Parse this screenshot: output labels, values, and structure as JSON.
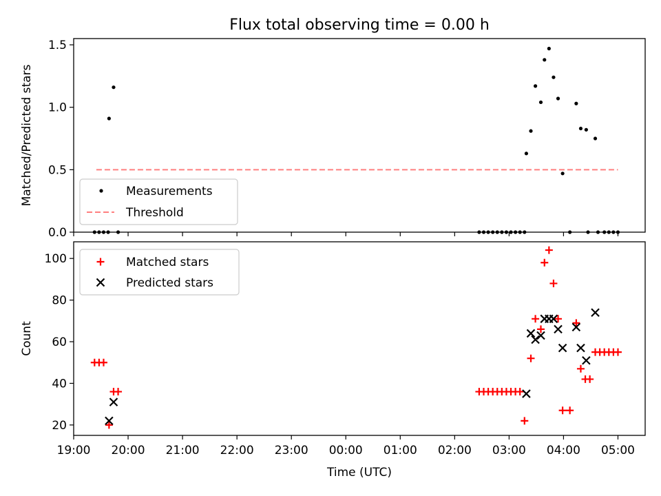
{
  "chart_data": [
    {
      "type": "scatter",
      "title": "Flux total observing time = 0.00 h",
      "xlabel": "",
      "ylabel": "Matched/Predicted stars",
      "xlim": [
        "19:00",
        "05:30"
      ],
      "ylim": [
        0,
        1.55
      ],
      "yticks": [
        "0.0",
        "0.5",
        "1.0",
        "1.5"
      ],
      "grid": false,
      "legend_position": "lower-left",
      "series": [
        {
          "name": "Measurements",
          "marker": "dot",
          "color": "#000000",
          "points": [
            [
              "19:23",
              0
            ],
            [
              "19:28",
              0
            ],
            [
              "19:33",
              0
            ],
            [
              "19:38",
              0
            ],
            [
              "19:39",
              0.91
            ],
            [
              "19:44",
              1.16
            ],
            [
              "19:49",
              0
            ],
            [
              "02:27",
              0
            ],
            [
              "02:32",
              0
            ],
            [
              "02:37",
              0
            ],
            [
              "02:42",
              0
            ],
            [
              "02:47",
              0
            ],
            [
              "02:52",
              0
            ],
            [
              "02:57",
              0
            ],
            [
              "03:02",
              0
            ],
            [
              "03:07",
              0
            ],
            [
              "03:12",
              0
            ],
            [
              "03:17",
              0
            ],
            [
              "03:19",
              0.63
            ],
            [
              "03:24",
              0.81
            ],
            [
              "03:29",
              1.17
            ],
            [
              "03:35",
              1.04
            ],
            [
              "03:39",
              1.38
            ],
            [
              "03:44",
              1.47
            ],
            [
              "03:49",
              1.24
            ],
            [
              "03:54",
              1.07
            ],
            [
              "03:59",
              0.47
            ],
            [
              "04:07",
              0
            ],
            [
              "04:14",
              1.03
            ],
            [
              "04:19",
              0.83
            ],
            [
              "04:25",
              0.82
            ],
            [
              "04:27",
              0
            ],
            [
              "04:35",
              0.75
            ],
            [
              "04:38",
              0
            ],
            [
              "04:45",
              0
            ],
            [
              "04:50",
              0
            ],
            [
              "04:55",
              0
            ],
            [
              "05:00",
              0
            ]
          ]
        },
        {
          "name": "Threshold",
          "marker": "dashed-line",
          "color": "#ff7f7f",
          "points": [
            [
              "19:25",
              0.5
            ],
            [
              "05:00",
              0.5
            ]
          ]
        }
      ]
    },
    {
      "type": "scatter",
      "title": "",
      "xlabel": "Time (UTC)",
      "ylabel": "Count",
      "xlim": [
        "19:00",
        "05:30"
      ],
      "ylim": [
        15,
        108
      ],
      "yticks": [
        "20",
        "40",
        "60",
        "80",
        "100"
      ],
      "xticks": [
        "19:00",
        "20:00",
        "21:00",
        "22:00",
        "23:00",
        "00:00",
        "01:00",
        "02:00",
        "03:00",
        "04:00",
        "05:00"
      ],
      "grid": false,
      "legend_position": "upper-left",
      "series": [
        {
          "name": "Matched stars",
          "marker": "plus",
          "color": "#ff0000",
          "points": [
            [
              "19:23",
              50
            ],
            [
              "19:28",
              50
            ],
            [
              "19:33",
              50
            ],
            [
              "19:39",
              20
            ],
            [
              "19:44",
              36
            ],
            [
              "19:49",
              36
            ],
            [
              "02:27",
              36
            ],
            [
              "02:32",
              36
            ],
            [
              "02:37",
              36
            ],
            [
              "02:42",
              36
            ],
            [
              "02:47",
              36
            ],
            [
              "02:52",
              36
            ],
            [
              "02:57",
              36
            ],
            [
              "03:02",
              36
            ],
            [
              "03:07",
              36
            ],
            [
              "03:12",
              36
            ],
            [
              "03:17",
              22
            ],
            [
              "03:24",
              52
            ],
            [
              "03:29",
              71
            ],
            [
              "03:35",
              66
            ],
            [
              "03:39",
              98
            ],
            [
              "03:44",
              104
            ],
            [
              "03:49",
              88
            ],
            [
              "03:54",
              71
            ],
            [
              "03:59",
              27
            ],
            [
              "04:07",
              27
            ],
            [
              "04:14",
              69
            ],
            [
              "04:19",
              47
            ],
            [
              "04:24",
              42
            ],
            [
              "04:29",
              42
            ],
            [
              "04:35",
              55
            ],
            [
              "04:40",
              55
            ],
            [
              "04:45",
              55
            ],
            [
              "04:50",
              55
            ],
            [
              "04:55",
              55
            ],
            [
              "05:00",
              55
            ]
          ]
        },
        {
          "name": "Predicted stars",
          "marker": "x",
          "color": "#000000",
          "points": [
            [
              "19:39",
              22
            ],
            [
              "19:44",
              31
            ],
            [
              "03:19",
              35
            ],
            [
              "03:24",
              64
            ],
            [
              "03:29",
              61
            ],
            [
              "03:35",
              63
            ],
            [
              "03:39",
              71
            ],
            [
              "03:44",
              71
            ],
            [
              "03:49",
              71
            ],
            [
              "03:54",
              66
            ],
            [
              "03:59",
              57
            ],
            [
              "04:14",
              67
            ],
            [
              "04:19",
              57
            ],
            [
              "04:25",
              51
            ],
            [
              "04:35",
              74
            ]
          ]
        }
      ]
    }
  ]
}
